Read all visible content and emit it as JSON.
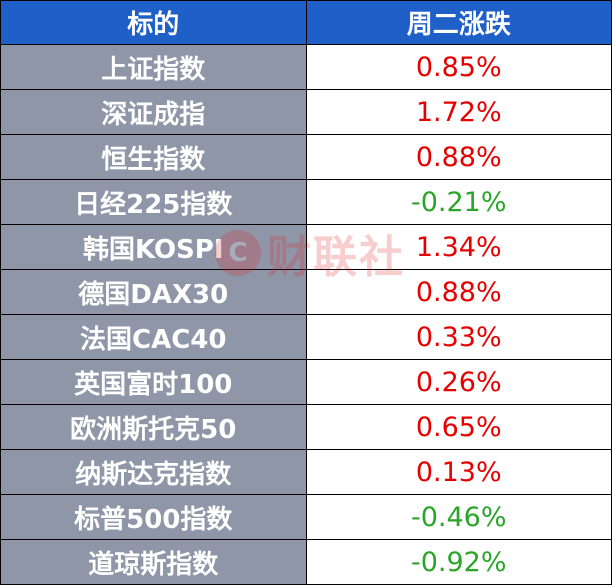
{
  "header": {
    "col_name": "标的",
    "col_change": "周二涨跌"
  },
  "rows": [
    {
      "name": "上证指数",
      "change": "0.85%",
      "direction": "up"
    },
    {
      "name": "深证成指",
      "change": "1.72%",
      "direction": "up"
    },
    {
      "name": "恒生指数",
      "change": "0.88%",
      "direction": "up"
    },
    {
      "name": "日经225指数",
      "change": "-0.21%",
      "direction": "down"
    },
    {
      "name": "韩国KOSPI",
      "change": "1.34%",
      "direction": "up"
    },
    {
      "name": "德国DAX30",
      "change": "0.88%",
      "direction": "up"
    },
    {
      "name": "法国CAC40",
      "change": "0.33%",
      "direction": "up"
    },
    {
      "name": "英国富时100",
      "change": "0.26%",
      "direction": "up"
    },
    {
      "name": "欧洲斯托克50",
      "change": "0.65%",
      "direction": "up"
    },
    {
      "name": "纳斯达克指数",
      "change": "0.13%",
      "direction": "up"
    },
    {
      "name": "标普500指数",
      "change": "-0.46%",
      "direction": "down"
    },
    {
      "name": "道琼斯指数",
      "change": "-0.92%",
      "direction": "down"
    }
  ],
  "colors": {
    "header_bg": "#1f5fc8",
    "name_bg": "#8f96a8",
    "up": "#e60000",
    "down": "#2aa52a"
  },
  "watermark": {
    "mark": "C",
    "text": "财联社"
  }
}
